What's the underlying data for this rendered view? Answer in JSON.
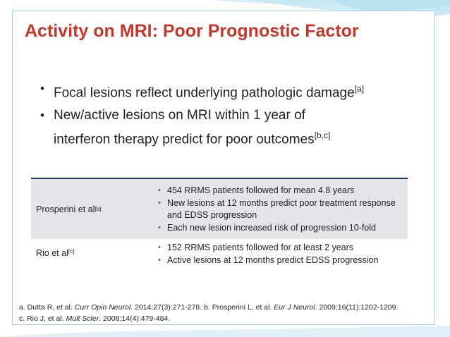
{
  "title": "Activity on MRI: Poor Prognostic Factor",
  "bullets": [
    {
      "text": "Focal lesions reflect underlying pathologic damage",
      "sup": "[a]"
    },
    {
      "text_line1": "New/active lesions on MRI within 1 year of",
      "text_line2": "interferon therapy predict for poor outcomes",
      "sup": "[b,c]"
    }
  ],
  "table": {
    "rows": [
      {
        "name": "Prosperini et al",
        "sup": "[b]",
        "points": [
          "454 RRMS patients followed for mean 4.8 years",
          "New lesions at 12 months predict poor treatment response and EDSS progression",
          "Each new lesion increased risk of progression 10-fold"
        ]
      },
      {
        "name": "Rio et al",
        "sup": "[c]",
        "points": [
          "152 RRMS patients followed for at least 2 years",
          "Active lesions at 12 months predict EDSS progression"
        ]
      }
    ]
  },
  "references": {
    "a_pre": "a. Dutta R, et al. ",
    "a_journal": "Curr Opin Neurol",
    "a_post": ". 2014;27(3):271-278. b. Prosperini L, et al. ",
    "b_journal": "Eur J Neurol",
    "b_post": ". 2009;16(11):1202-1209.",
    "c_pre": "c. Rio J, et al. ",
    "c_journal": "Mult Scler",
    "c_post": ". 2008;14(4):479-484."
  },
  "colors": {
    "title": "#c0392b",
    "table_rule": "#1f3b57",
    "row_shade": "#e3e5e8",
    "bullet_dot": "#2b6ca3",
    "frame": "#9ecfe0"
  }
}
